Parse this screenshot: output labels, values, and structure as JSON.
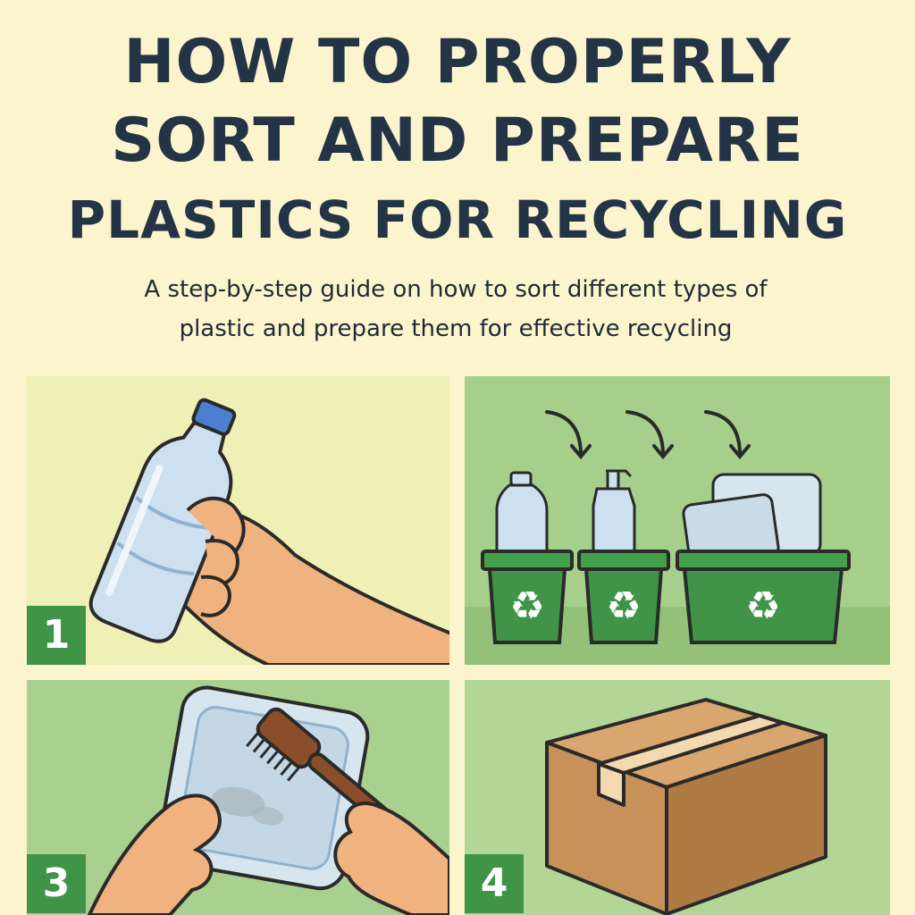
{
  "title": {
    "line1": "HOW TO PROPERLY",
    "line2": "SORT AND PREPARE",
    "line3": "PLASTICS FOR RECYCLING"
  },
  "subtitle": {
    "line1": "A step-by-step guide on how to sort different types of",
    "line2": "plastic and prepare them for effective recycling"
  },
  "steps": [
    {
      "number": "1",
      "icon": "hand-holding-bottle-icon"
    },
    {
      "number": "",
      "icon": "sorting-bins-icon"
    },
    {
      "number": "3",
      "icon": "cleaning-container-icon"
    },
    {
      "number": "4",
      "icon": "cardboard-box-icon"
    }
  ],
  "colors": {
    "background": "#fbf4cc",
    "title": "#243447",
    "badge": "#3f9447",
    "bin": "#3f9447"
  }
}
